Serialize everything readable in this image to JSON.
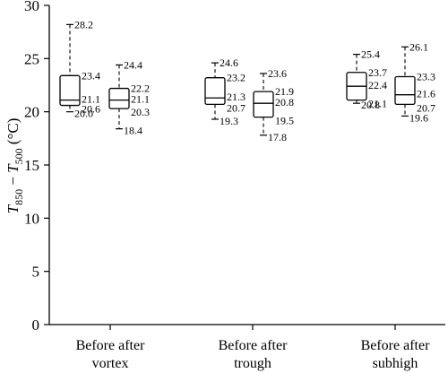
{
  "chart_data": {
    "type": "box",
    "ylabel": "T850 − T500 (°C)",
    "ylabel_parts": {
      "base1": "T",
      "sub1": "850",
      "mid": " − ",
      "base2": "T",
      "sub2": "500",
      "unit": " (°C)"
    },
    "ylim": [
      0,
      30
    ],
    "yticks": [
      "0",
      "5",
      "10",
      "15",
      "20",
      "25",
      "30"
    ],
    "ytick_values": [
      0,
      5,
      10,
      15,
      20,
      25,
      30
    ],
    "groups": [
      {
        "label_line1": "Before after",
        "label_line2": "vortex"
      },
      {
        "label_line1": "Before after",
        "label_line2": "trough"
      },
      {
        "label_line1": "Before after",
        "label_line2": "subhigh"
      }
    ],
    "boxes": [
      {
        "group": 0,
        "name": "before",
        "max": 28.2,
        "q3": 23.4,
        "median": 21.1,
        "q1": 20.6,
        "min": 20.0,
        "labels": {
          "max": "28.2",
          "q3": "23.4",
          "median": "21.1",
          "q1": "20.6",
          "min": "20.0"
        }
      },
      {
        "group": 0,
        "name": "after",
        "max": 24.4,
        "q3": 22.2,
        "median": 21.1,
        "q1": 20.3,
        "min": 18.4,
        "labels": {
          "max": "24.4",
          "q3": "22.2",
          "median": "21.1",
          "q1": "20.3",
          "min": "18.4"
        }
      },
      {
        "group": 1,
        "name": "before",
        "max": 24.6,
        "q3": 23.2,
        "median": 21.3,
        "q1": 20.7,
        "min": 19.3,
        "labels": {
          "max": "24.6",
          "q3": "23.2",
          "median": "21.3",
          "q1": "20.7",
          "min": "19.3"
        }
      },
      {
        "group": 1,
        "name": "after",
        "max": 23.6,
        "q3": 21.9,
        "median": 20.8,
        "q1": 19.5,
        "min": 17.8,
        "labels": {
          "max": "23.6",
          "q3": "21.9",
          "median": "20.8",
          "q1": "19.5",
          "min": "17.8"
        }
      },
      {
        "group": 2,
        "name": "before",
        "max": 25.4,
        "q3": 23.7,
        "median": 22.4,
        "q1": 21.1,
        "min": 20.8,
        "labels": {
          "max": "25.4",
          "q3": "23.7",
          "median": "22.4",
          "q1": "21.1",
          "min": "20.8"
        }
      },
      {
        "group": 2,
        "name": "after",
        "max": 26.1,
        "q3": 23.3,
        "median": 21.6,
        "q1": 20.7,
        "min": 19.6,
        "labels": {
          "max": "26.1",
          "q3": "23.3",
          "median": "21.6",
          "q1": "20.7",
          "min": "19.6"
        }
      }
    ]
  }
}
